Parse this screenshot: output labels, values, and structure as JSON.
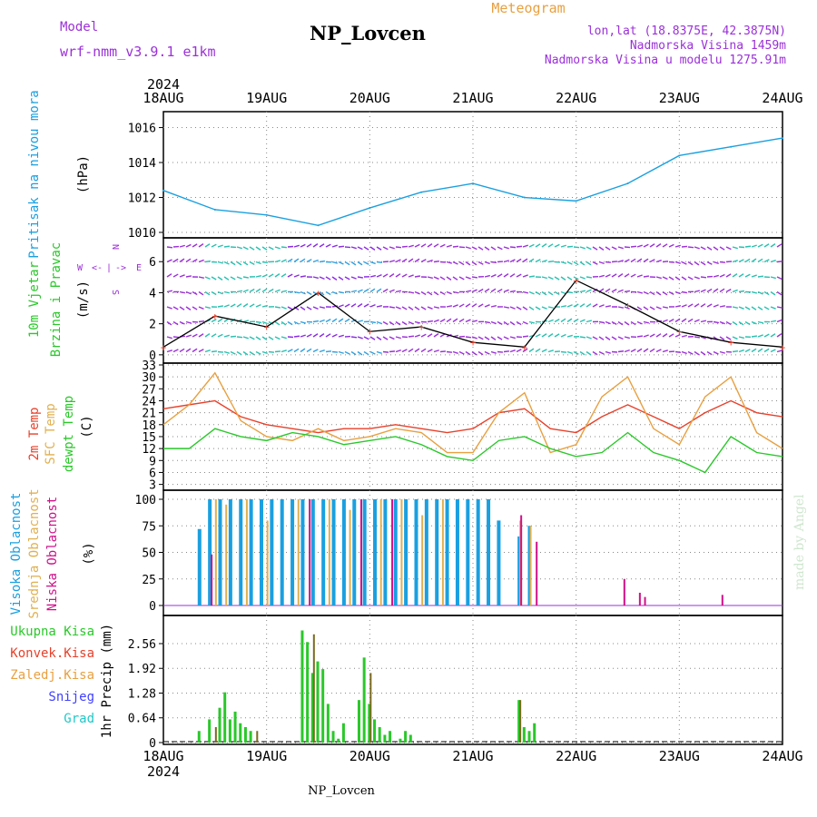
{
  "header": {
    "title": "NP_Lovcen",
    "subtitle": "Meteogram",
    "model_label": "Model",
    "model_name": "wrf-nmm_v3.9.1 e1km",
    "coords": "lon,lat (18.8375E, 42.3875N)",
    "altitude": "Nadmorska Visina 1459m",
    "model_altitude": "Nadmorska Visina u modelu 1275.91m",
    "year_top": "2024",
    "year_bottom": "2024",
    "footer": "NP_Lovcen",
    "credit": "made by Angel"
  },
  "colors": {
    "purple": "#9b30d8",
    "orange": "#e8a040",
    "blue": "#1aa0e0",
    "red": "#e8402a",
    "green": "#2ac82a",
    "yellow": "#e0b050",
    "magenta": "#d0108a",
    "snow": "#4040ff",
    "grad": "#20c8c8",
    "olive": "#7a6a20"
  },
  "days": [
    "18AUG",
    "19AUG",
    "20AUG",
    "21AUG",
    "22AUG",
    "23AUG",
    "24AUG"
  ],
  "chart_data": [
    {
      "id": "pressure",
      "type": "line",
      "ylabel_lines": [
        "Pritisak na nivou mora",
        "(hPa)"
      ],
      "ylim": [
        1010,
        1016.6
      ],
      "yticks": [
        "1010",
        "1012",
        "1014",
        "1016"
      ],
      "x": [
        0,
        0.5,
        1,
        1.5,
        2,
        2.5,
        3,
        3.5,
        4,
        4.5,
        5,
        5.5,
        6
      ],
      "series": [
        {
          "values": [
            1012.4,
            1011.3,
            1011.0,
            1010.4,
            1011.4,
            1012.3,
            1012.8,
            1012.0,
            1011.8,
            1012.8,
            1014.4,
            1014.9,
            1015.4
          ],
          "color": "#1aa0e0"
        }
      ]
    },
    {
      "id": "wind",
      "type": "line",
      "ylabel_lines": [
        "10m Vjetar",
        "Brzina i Pravac",
        "(m/s)"
      ],
      "compass": [
        "W",
        "<-",
        "|",
        "->",
        "E",
        "N",
        "S"
      ],
      "ylim": [
        -0.3,
        7.3
      ],
      "yticks": [
        "0",
        "2",
        "4",
        "6"
      ],
      "x": [
        0,
        0.5,
        1,
        1.5,
        2,
        2.5,
        3,
        3.5,
        4,
        4.5,
        5,
        5.5,
        6
      ],
      "series": [
        {
          "values": [
            0.5,
            2.5,
            1.8,
            4.0,
            1.5,
            1.8,
            0.8,
            0.5,
            4.8,
            3.2,
            1.5,
            0.8,
            0.5
          ],
          "color": "#000000"
        }
      ]
    },
    {
      "id": "temperature",
      "type": "line",
      "ylabel_lines": [
        "2m Temp",
        "SFC Temp",
        "dewpt Temp",
        "(C)"
      ],
      "ylim": [
        2,
        33
      ],
      "yticks": [
        "3",
        "6",
        "9",
        "12",
        "15",
        "18",
        "21",
        "24",
        "27",
        "30",
        "33"
      ],
      "x": [
        0,
        0.25,
        0.5,
        0.75,
        1,
        1.25,
        1.5,
        1.75,
        2,
        2.25,
        2.5,
        2.75,
        3,
        3.25,
        3.5,
        3.75,
        4,
        4.25,
        4.5,
        4.75,
        5,
        5.25,
        5.5,
        5.75,
        6
      ],
      "series": [
        {
          "name": "2m Temp",
          "values": [
            22,
            23,
            24,
            20,
            18,
            17,
            16,
            17,
            17,
            18,
            17,
            16,
            17,
            21,
            22,
            17,
            16,
            20,
            23,
            20,
            17,
            21,
            24,
            21,
            20
          ],
          "color": "#e8402a"
        },
        {
          "name": "SFC Temp",
          "values": [
            18,
            23,
            31,
            19,
            15,
            14,
            17,
            14,
            15,
            17,
            16,
            11,
            11,
            21,
            26,
            11,
            13,
            25,
            30,
            17,
            13,
            25,
            30,
            16,
            12
          ],
          "color": "#e8a040"
        },
        {
          "name": "dewpt Temp",
          "values": [
            12,
            12,
            17,
            15,
            14,
            16,
            15,
            13,
            14,
            15,
            13,
            10,
            9,
            14,
            15,
            12,
            10,
            11,
            16,
            11,
            9,
            6,
            15,
            11,
            10
          ],
          "color": "#2ac82a"
        }
      ]
    },
    {
      "id": "clouds",
      "type": "bar",
      "ylabel_lines": [
        "Visoka Oblacnost",
        "Srednja Oblacnost",
        "Niska Oblacnost",
        "(%)"
      ],
      "ylim": [
        0,
        100
      ],
      "yticks": [
        "0",
        "25",
        "50",
        "75",
        "100"
      ],
      "series": [
        {
          "name": "Visoka Oblacnost",
          "color": "#1aa0e0",
          "x": [
            0.35,
            0.45,
            0.55,
            0.65,
            0.75,
            0.85,
            0.95,
            1.05,
            1.15,
            1.25,
            1.35,
            1.45,
            1.55,
            1.65,
            1.75,
            1.85,
            1.95,
            2.05,
            2.15,
            2.25,
            2.35,
            2.45,
            2.55,
            2.65,
            2.75,
            2.85,
            2.95,
            3.05,
            3.15,
            3.25,
            3.45,
            3.55
          ],
          "values": [
            72,
            100,
            100,
            100,
            100,
            100,
            100,
            100,
            100,
            100,
            100,
            100,
            100,
            100,
            100,
            100,
            100,
            100,
            100,
            100,
            100,
            100,
            100,
            100,
            100,
            100,
            100,
            100,
            100,
            80,
            65,
            75
          ]
        },
        {
          "name": "Srednja Oblacnost",
          "color": "#e0b050",
          "x": [
            0.5,
            0.6,
            0.8,
            1.0,
            1.3,
            1.6,
            1.8,
            2.1,
            2.3,
            2.5,
            2.7,
            3.45,
            3.55
          ],
          "values": [
            100,
            95,
            100,
            80,
            100,
            100,
            90,
            100,
            100,
            85,
            100,
            80,
            75
          ]
        },
        {
          "name": "Niska Oblacnost",
          "color": "#d0108a",
          "x": [
            0.45,
            1.4,
            1.9,
            2.2,
            3.45,
            3.6,
            4.45,
            4.6,
            4.65,
            5.4
          ],
          "values": [
            48,
            100,
            100,
            100,
            85,
            60,
            25,
            12,
            8,
            10
          ]
        }
      ]
    },
    {
      "id": "precip",
      "type": "bar",
      "ylabel_lines": [
        "1hr Precip (mm)"
      ],
      "legend": [
        "Ukupna Kisa",
        "Konvek.Kisa",
        "Zaledj.Kisa",
        "Snijeg",
        "Grad"
      ],
      "ylim": [
        0,
        3.1
      ],
      "yticks": [
        "0",
        "0.64",
        "1.28",
        "1.92",
        "2.56"
      ],
      "series": [
        {
          "name": "Ukupna Kisa",
          "color": "#2ac82a",
          "x": [
            0.35,
            0.45,
            0.55,
            0.6,
            0.65,
            0.7,
            0.75,
            0.8,
            0.85,
            1.35,
            1.4,
            1.45,
            1.5,
            1.55,
            1.6,
            1.65,
            1.7,
            1.75,
            1.9,
            1.95,
            2.0,
            2.05,
            2.1,
            2.15,
            2.2,
            2.3,
            2.35,
            2.4,
            3.45,
            3.5,
            3.55,
            3.6
          ],
          "values": [
            0.3,
            0.6,
            0.9,
            1.3,
            0.6,
            0.8,
            0.5,
            0.4,
            0.3,
            2.9,
            2.6,
            1.8,
            2.1,
            1.9,
            1.0,
            0.3,
            0.1,
            0.5,
            1.1,
            2.2,
            1.0,
            0.6,
            0.4,
            0.2,
            0.3,
            0.1,
            0.3,
            0.2,
            1.1,
            0.4,
            0.3,
            0.5
          ]
        },
        {
          "name": "Konvek.Kisa",
          "color": "#e8402a",
          "x": [
            0.5,
            0.9,
            1.45,
            2.0,
            3.45
          ],
          "values": [
            0.4,
            0.3,
            2.8,
            1.8,
            1.1
          ]
        }
      ]
    }
  ]
}
